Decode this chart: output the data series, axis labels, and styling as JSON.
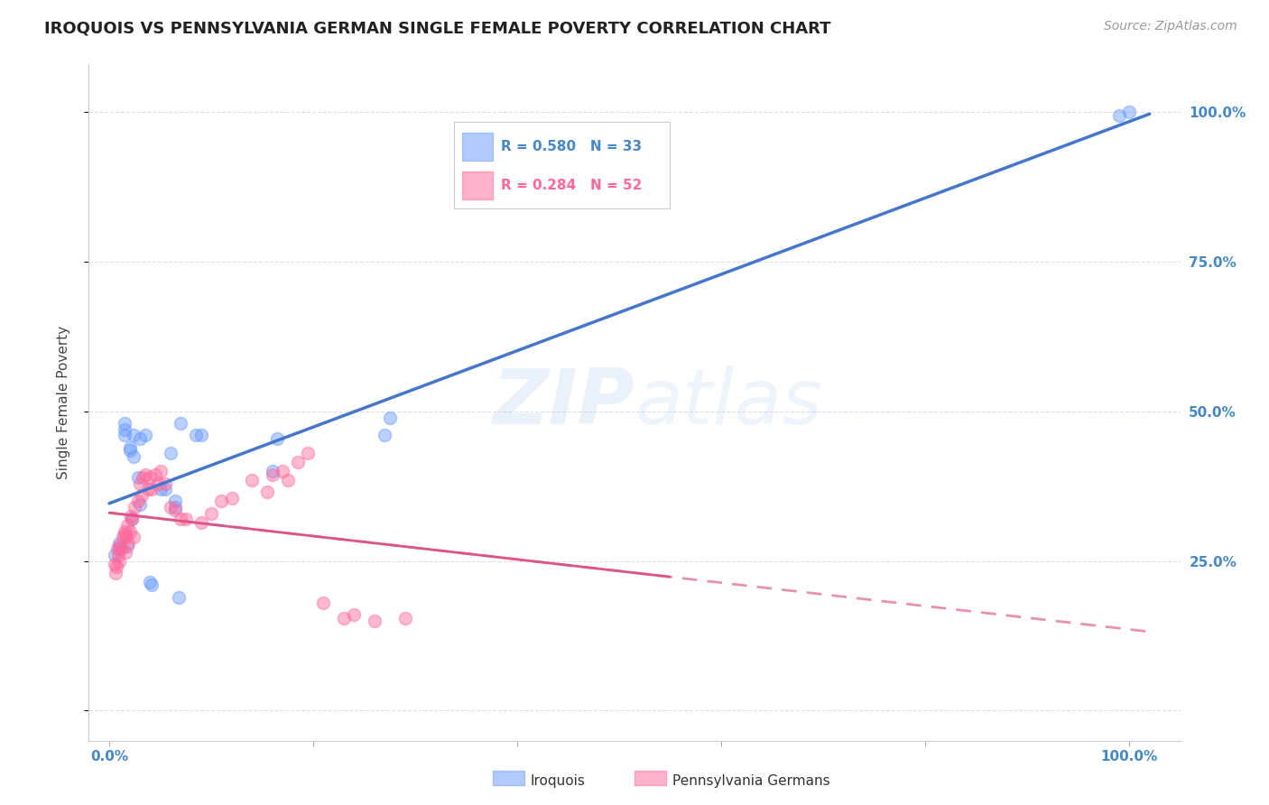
{
  "title": "IROQUOIS VS PENNSYLVANIA GERMAN SINGLE FEMALE POVERTY CORRELATION CHART",
  "source": "Source: ZipAtlas.com",
  "ylabel": "Single Female Poverty",
  "legend_label_blue": "Iroquois",
  "legend_label_pink": "Pennsylvania Germans",
  "r_blue": 0.58,
  "n_blue": 33,
  "r_pink": 0.284,
  "n_pink": 52,
  "watermark": "ZIPatlas",
  "background_color": "#ffffff",
  "blue_color": "#6699ff",
  "pink_color": "#ff6699",
  "blue_line_color": "#4477cc",
  "pink_line_color": "#dd5588",
  "axis_label_color": "#4488cc",
  "grid_color": "#ddddee",
  "title_color": "#222222",
  "iroquois_x": [
    0.005,
    0.01,
    0.01,
    0.015,
    0.015,
    0.015,
    0.018,
    0.02,
    0.02,
    0.022,
    0.024,
    0.024,
    0.028,
    0.03,
    0.03,
    0.035,
    0.04,
    0.042,
    0.05,
    0.055,
    0.06,
    0.065,
    0.065,
    0.068,
    0.07,
    0.085,
    0.09,
    0.16,
    0.165,
    0.27,
    0.275,
    0.99,
    1.0
  ],
  "iroquois_y": [
    0.26,
    0.28,
    0.27,
    0.46,
    0.47,
    0.48,
    0.275,
    0.435,
    0.44,
    0.32,
    0.46,
    0.425,
    0.39,
    0.345,
    0.455,
    0.46,
    0.215,
    0.21,
    0.37,
    0.37,
    0.43,
    0.34,
    0.35,
    0.19,
    0.48,
    0.46,
    0.46,
    0.4,
    0.455,
    0.46,
    0.49,
    0.995,
    1.0
  ],
  "penn_x": [
    0.005,
    0.006,
    0.007,
    0.008,
    0.009,
    0.01,
    0.01,
    0.012,
    0.013,
    0.015,
    0.015,
    0.016,
    0.017,
    0.018,
    0.019,
    0.02,
    0.021,
    0.022,
    0.024,
    0.025,
    0.028,
    0.03,
    0.032,
    0.033,
    0.035,
    0.038,
    0.04,
    0.042,
    0.045,
    0.048,
    0.05,
    0.055,
    0.06,
    0.065,
    0.07,
    0.075,
    0.09,
    0.1,
    0.11,
    0.12,
    0.14,
    0.155,
    0.16,
    0.17,
    0.175,
    0.185,
    0.195,
    0.21,
    0.23,
    0.24,
    0.26,
    0.29
  ],
  "penn_y": [
    0.245,
    0.23,
    0.24,
    0.27,
    0.26,
    0.25,
    0.275,
    0.27,
    0.29,
    0.3,
    0.295,
    0.265,
    0.29,
    0.31,
    0.28,
    0.3,
    0.325,
    0.32,
    0.29,
    0.34,
    0.35,
    0.38,
    0.36,
    0.39,
    0.395,
    0.37,
    0.39,
    0.37,
    0.395,
    0.38,
    0.4,
    0.38,
    0.34,
    0.335,
    0.32,
    0.32,
    0.315,
    0.33,
    0.35,
    0.355,
    0.385,
    0.365,
    0.395,
    0.4,
    0.385,
    0.415,
    0.43,
    0.18,
    0.155,
    0.16,
    0.15,
    0.155
  ],
  "xlim": [
    -0.02,
    1.05
  ],
  "ylim": [
    -0.05,
    1.08
  ],
  "yticks": [
    0.0,
    0.25,
    0.5,
    0.75,
    1.0
  ],
  "ytick_labels": [
    "",
    "25.0%",
    "50.0%",
    "75.0%",
    "100.0%"
  ],
  "xtick_positions": [
    0.0,
    1.0
  ],
  "xtick_labels": [
    "0.0%",
    "100.0%"
  ],
  "marker_size": 100,
  "title_fontsize": 13,
  "source_fontsize": 10,
  "tick_fontsize": 11,
  "ylabel_fontsize": 11
}
